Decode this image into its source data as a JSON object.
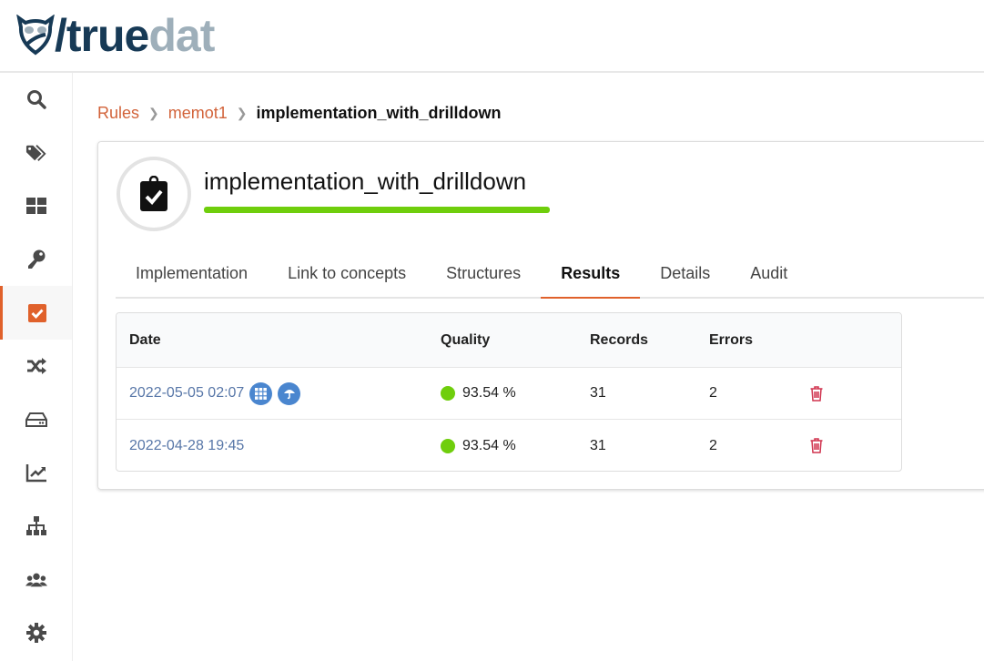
{
  "app": {
    "logo_part1": "/true",
    "logo_part2": "dat"
  },
  "sidebar": {
    "items": [
      {
        "name": "search-icon"
      },
      {
        "name": "tags-icon"
      },
      {
        "name": "grid-icon"
      },
      {
        "name": "key-icon"
      },
      {
        "name": "check-square-icon",
        "active": true
      },
      {
        "name": "shuffle-icon"
      },
      {
        "name": "hdd-icon"
      },
      {
        "name": "chart-line-icon"
      },
      {
        "name": "sitemap-icon"
      },
      {
        "name": "users-icon"
      },
      {
        "name": "cog-icon"
      }
    ]
  },
  "breadcrumb": {
    "items": [
      "Rules",
      "memot1"
    ],
    "current": "implementation_with_drilldown"
  },
  "implementation": {
    "title": "implementation_with_drilldown"
  },
  "tabs": [
    "Implementation",
    "Link to concepts",
    "Structures",
    "Results",
    "Details",
    "Audit"
  ],
  "active_tab": "Results",
  "table": {
    "headers": [
      "Date",
      "Quality",
      "Records",
      "Errors"
    ],
    "rows": [
      {
        "date": "2022-05-05 02:07",
        "quality": "93.54 %",
        "records": "31",
        "errors": "2",
        "has_drilldown": true
      },
      {
        "date": "2022-04-28 19:45",
        "quality": "93.54 %",
        "records": "31",
        "errors": "2",
        "has_drilldown": false
      }
    ]
  },
  "colors": {
    "accent": "#e0612b",
    "quality_good": "#6fce0c",
    "link": "#5877a8",
    "delete": "#d0344f"
  }
}
